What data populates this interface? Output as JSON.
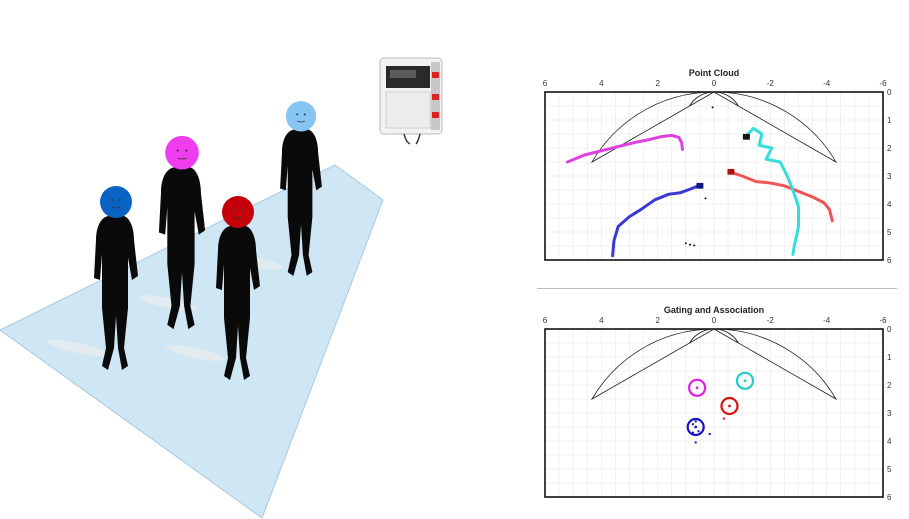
{
  "scene": {
    "people": [
      {
        "name": "blue",
        "color": "#0a62c2"
      },
      {
        "name": "magenta",
        "color": "#ee3cee"
      },
      {
        "name": "red",
        "color": "#c4000a"
      },
      {
        "name": "cyan",
        "color": "#86c4f2"
      }
    ],
    "floor_color": "#cfe6f5",
    "device": "radar-sensor"
  },
  "chart_data": [
    {
      "type": "scatter",
      "title": "Point Cloud",
      "xlim": [
        6,
        -6
      ],
      "ylim": [
        0,
        6
      ],
      "x_ticks": [
        6,
        4,
        2,
        0,
        -2,
        -4,
        -6
      ],
      "y_ticks": [
        0,
        1,
        2,
        3,
        4,
        5,
        6
      ],
      "grid": true,
      "fov": {
        "min_range": 1.0,
        "max_range": 5.0,
        "half_angle_deg": 60
      },
      "tracks": [
        {
          "color": "#e040e0",
          "points": [
            [
              5.2,
              2.5
            ],
            [
              4.6,
              2.25
            ],
            [
              4.0,
              2.1
            ],
            [
              3.4,
              1.95
            ],
            [
              2.8,
              1.8
            ],
            [
              2.3,
              1.7
            ],
            [
              1.9,
              1.6
            ],
            [
              1.5,
              1.55
            ],
            [
              1.25,
              1.62
            ],
            [
              1.15,
              1.8
            ],
            [
              1.12,
              2.05
            ]
          ]
        },
        {
          "color": "#3a3ad0",
          "points": [
            [
              3.6,
              5.85
            ],
            [
              3.55,
              5.3
            ],
            [
              3.4,
              4.8
            ],
            [
              3.0,
              4.45
            ],
            [
              2.6,
              4.2
            ],
            [
              2.1,
              3.85
            ],
            [
              1.6,
              3.65
            ],
            [
              1.2,
              3.6
            ],
            [
              0.8,
              3.45
            ],
            [
              0.55,
              3.35
            ]
          ]
        },
        {
          "color": "#ee5555",
          "points": [
            [
              -0.55,
              2.85
            ],
            [
              -1.0,
              3.0
            ],
            [
              -1.5,
              3.2
            ],
            [
              -2.0,
              3.25
            ],
            [
              -2.5,
              3.35
            ],
            [
              -3.0,
              3.55
            ],
            [
              -3.5,
              3.75
            ],
            [
              -3.9,
              3.95
            ],
            [
              -4.1,
              4.2
            ],
            [
              -4.2,
              4.6
            ]
          ]
        },
        {
          "color": "#33dddd",
          "points": [
            [
              -1.15,
              1.55
            ],
            [
              -1.4,
              1.3
            ],
            [
              -1.7,
              1.5
            ],
            [
              -1.6,
              1.9
            ],
            [
              -2.05,
              2.0
            ],
            [
              -1.85,
              2.4
            ],
            [
              -2.35,
              2.5
            ],
            [
              -2.6,
              3.0
            ],
            [
              -2.8,
              3.5
            ],
            [
              -3.0,
              4.1
            ],
            [
              -3.0,
              4.8
            ],
            [
              -2.85,
              5.5
            ],
            [
              -2.8,
              5.8
            ]
          ]
        }
      ],
      "clusters": [
        {
          "color": "#0a1a80",
          "x": 0.5,
          "y": 3.35
        },
        {
          "color": "#b01010",
          "x": -0.6,
          "y": 2.85
        },
        {
          "color": "#111111",
          "x": -1.15,
          "y": 1.6
        }
      ],
      "stray_points": [
        [
          0.05,
          0.55
        ],
        [
          0.3,
          3.8
        ],
        [
          1.0,
          5.4
        ],
        [
          0.85,
          5.45
        ],
        [
          0.7,
          5.48
        ]
      ]
    },
    {
      "type": "scatter",
      "title": "Gating and Association",
      "xlim": [
        6,
        -6
      ],
      "ylim": [
        0,
        6
      ],
      "x_ticks": [
        6,
        4,
        2,
        0,
        -2,
        -4,
        -6
      ],
      "y_ticks": [
        0,
        1,
        2,
        3,
        4,
        5,
        6
      ],
      "grid": true,
      "fov": {
        "min_range": 1.0,
        "max_range": 5.0,
        "half_angle_deg": 60
      },
      "gates": [
        {
          "color": "#e020e0",
          "x": 0.6,
          "y": 2.1
        },
        {
          "color": "#22cccc",
          "x": -1.1,
          "y": 1.85
        },
        {
          "color": "#dd1111",
          "x": -0.55,
          "y": 2.75
        },
        {
          "color": "#1515c0",
          "x": 0.65,
          "y": 3.5
        }
      ]
    }
  ]
}
